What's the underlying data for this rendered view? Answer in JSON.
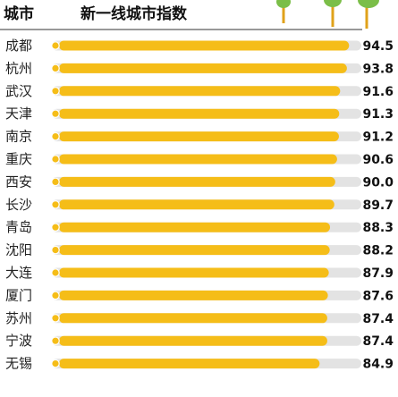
{
  "header": {
    "col_city": "城市",
    "col_index": "新一线城市指数"
  },
  "colors": {
    "bar": "#F5BD18",
    "track": "#E3E3E3",
    "dot": "#F5BD18",
    "leaf": "#7BBE48",
    "trunk": "#E0A21A"
  },
  "chart_data": {
    "type": "bar",
    "orientation": "horizontal",
    "title": "新一线城市指数",
    "xlabel": "",
    "ylabel": "城市",
    "xlim": [
      0,
      100
    ],
    "grid": false,
    "legend": "none",
    "categories": [
      "成都",
      "杭州",
      "武汉",
      "天津",
      "南京",
      "重庆",
      "西安",
      "长沙",
      "青岛",
      "沈阳",
      "大连",
      "厦门",
      "苏州",
      "宁波",
      "无锡"
    ],
    "values": [
      94.5,
      93.8,
      91.6,
      91.3,
      91.2,
      90.6,
      90.0,
      89.7,
      88.3,
      88.2,
      87.9,
      87.6,
      87.4,
      87.4,
      84.9
    ],
    "labels": [
      "94.5",
      "93.8",
      "91.6",
      "91.3",
      "91.2",
      "90.6",
      "90.0",
      "89.7",
      "88.3",
      "88.2",
      "87.9",
      "87.6",
      "87.4",
      "87.4",
      "84.9"
    ]
  }
}
